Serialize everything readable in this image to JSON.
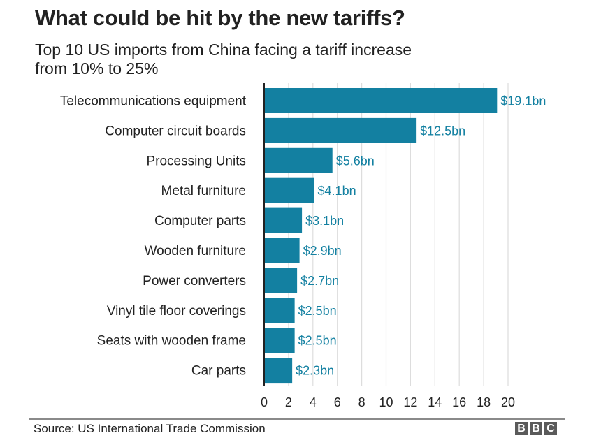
{
  "chart_data": {
    "type": "bar",
    "orientation": "horizontal",
    "title": "What could be hit by the new tariffs?",
    "subtitle_lines": [
      "Top 10 US imports from China facing a tariff increase",
      "from 10% to 25%"
    ],
    "categories": [
      "Telecommunications equipment",
      "Computer circuit boards",
      "Processing Units",
      "Metal furniture",
      "Computer parts",
      "Wooden furniture",
      "Power converters",
      "Vinyl tile floor coverings",
      "Seats with wooden frame",
      "Car parts"
    ],
    "values": [
      19.1,
      12.5,
      5.6,
      4.1,
      3.1,
      2.9,
      2.7,
      2.5,
      2.5,
      2.3
    ],
    "data_labels": [
      "$19.1bn",
      "$12.5bn",
      "$5.6bn",
      "$4.1bn",
      "$3.1bn",
      "$2.9bn",
      "$2.7bn",
      "$2.5bn",
      "$2.5bn",
      "$2.3bn"
    ],
    "xlabel": "",
    "ylabel": "",
    "xlim": [
      0,
      20
    ],
    "x_ticks": [
      0,
      2,
      4,
      6,
      8,
      10,
      12,
      14,
      16,
      18,
      20
    ],
    "x_tick_labels": [
      "0",
      "2",
      "4",
      "6",
      "8",
      "10",
      "12",
      "14",
      "16",
      "18",
      "20"
    ],
    "unit": "US$ billion",
    "grid": true,
    "legend": "none",
    "colors": {
      "bar": "#1380a1",
      "label": "#1380a1",
      "grid": "#dddddd",
      "axis": "#222222"
    }
  },
  "footer": {
    "source": "Source: US International Trade Commission",
    "logo_letters": [
      "B",
      "B",
      "C"
    ]
  }
}
